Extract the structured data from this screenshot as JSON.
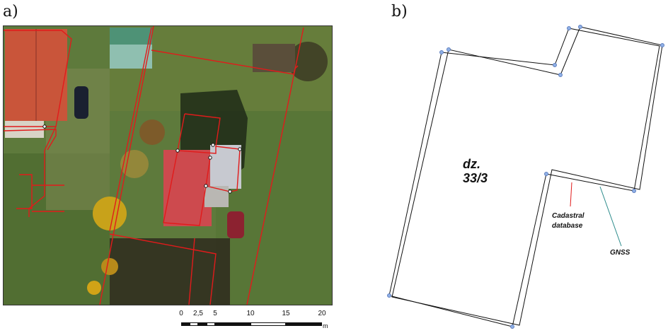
{
  "panels": {
    "a": {
      "label": "a)"
    },
    "b": {
      "label": "b)"
    }
  },
  "scale_bar": {
    "ticks": [
      "0",
      "2,5",
      "5",
      "10",
      "15",
      "20"
    ],
    "unit": "m"
  },
  "diagram": {
    "parcel_label_line1": "dz.",
    "parcel_label_line2": "33/3",
    "callout_cadastral_line1": "Cadastral",
    "callout_cadastral_line2": "database",
    "callout_gnss": "GNSS"
  },
  "colors": {
    "cadastral_line": "#e11b1b",
    "gnss_line": "#2a8a8a",
    "vertex": "#6d8fd0",
    "outline": "#111111"
  }
}
